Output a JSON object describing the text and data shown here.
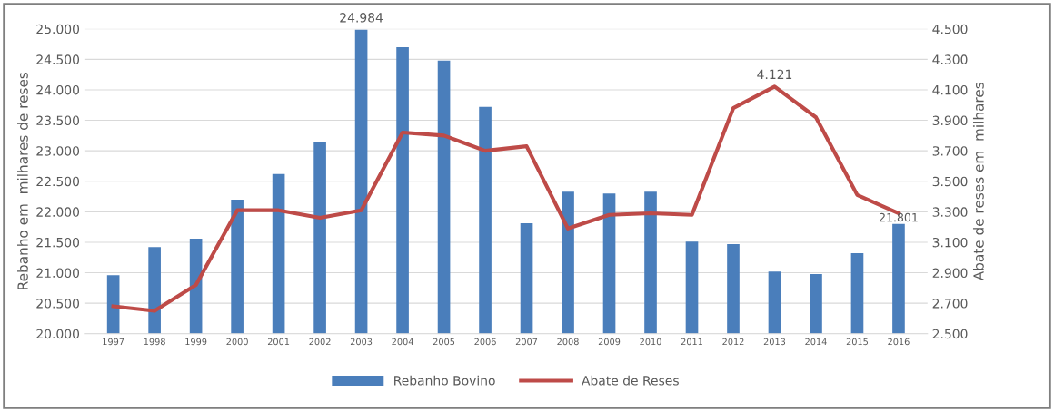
{
  "chart_data": {
    "type": "bar",
    "ylabel": "Rebanho em  milhares de reses",
    "y2label": "Abate de reses em  milhares",
    "categories": [
      "1997",
      "1998",
      "1999",
      "2000",
      "2001",
      "2002",
      "2003",
      "2004",
      "2005",
      "2006",
      "2007",
      "2008",
      "2009",
      "2010",
      "2011",
      "2012",
      "2013",
      "2014",
      "2015",
      "2016"
    ],
    "series": [
      {
        "name": "Rebanho Bovino",
        "color": "#4a7ebb",
        "values": [
          20960,
          21420,
          21560,
          22200,
          22620,
          23150,
          24984,
          24700,
          24480,
          23720,
          21810,
          22330,
          22300,
          22330,
          21510,
          21470,
          21020,
          20980,
          21320,
          21801
        ],
        "value_labels": [
          null,
          null,
          null,
          null,
          null,
          null,
          "24.984",
          null,
          null,
          null,
          null,
          null,
          null,
          null,
          null,
          null,
          null,
          null,
          null,
          "21.801"
        ]
      },
      {
        "name": "Abate de Reses",
        "type": "line",
        "axis": "y2",
        "color": "#be4b48",
        "values": [
          2680,
          2650,
          2820,
          3310,
          3310,
          3260,
          3310,
          3820,
          3800,
          3700,
          3730,
          3190,
          3280,
          3290,
          3280,
          3980,
          4121,
          3920,
          3410,
          3290
        ],
        "value_labels": [
          null,
          null,
          null,
          null,
          null,
          null,
          null,
          null,
          null,
          null,
          null,
          null,
          null,
          null,
          null,
          null,
          "4.121",
          null,
          null,
          null
        ]
      }
    ],
    "ylim": [
      20000,
      25000
    ],
    "yticks": [
      {
        "value": 20000,
        "label": "20.000"
      },
      {
        "value": 20500,
        "label": "20.500"
      },
      {
        "value": 21000,
        "label": "21.000"
      },
      {
        "value": 21500,
        "label": "21.500"
      },
      {
        "value": 22000,
        "label": "22.000"
      },
      {
        "value": 22500,
        "label": "22.500"
      },
      {
        "value": 23000,
        "label": "23.000"
      },
      {
        "value": 23500,
        "label": "23.500"
      },
      {
        "value": 24000,
        "label": "24.000"
      },
      {
        "value": 24500,
        "label": "24.500"
      },
      {
        "value": 25000,
        "label": "25.000"
      }
    ],
    "y2lim": [
      2500,
      4500
    ],
    "y2ticks": [
      {
        "value": 2500,
        "label": "2.500"
      },
      {
        "value": 2700,
        "label": "2.700"
      },
      {
        "value": 2900,
        "label": "2.900"
      },
      {
        "value": 3100,
        "label": "3.100"
      },
      {
        "value": 3300,
        "label": "3.300"
      },
      {
        "value": 3500,
        "label": "3.500"
      },
      {
        "value": 3700,
        "label": "3.700"
      },
      {
        "value": 3900,
        "label": "3.900"
      },
      {
        "value": 4100,
        "label": "4.100"
      },
      {
        "value": 4300,
        "label": "4.300"
      },
      {
        "value": 4500,
        "label": "4.500"
      }
    ],
    "grid": "y",
    "legend": "bottom"
  }
}
